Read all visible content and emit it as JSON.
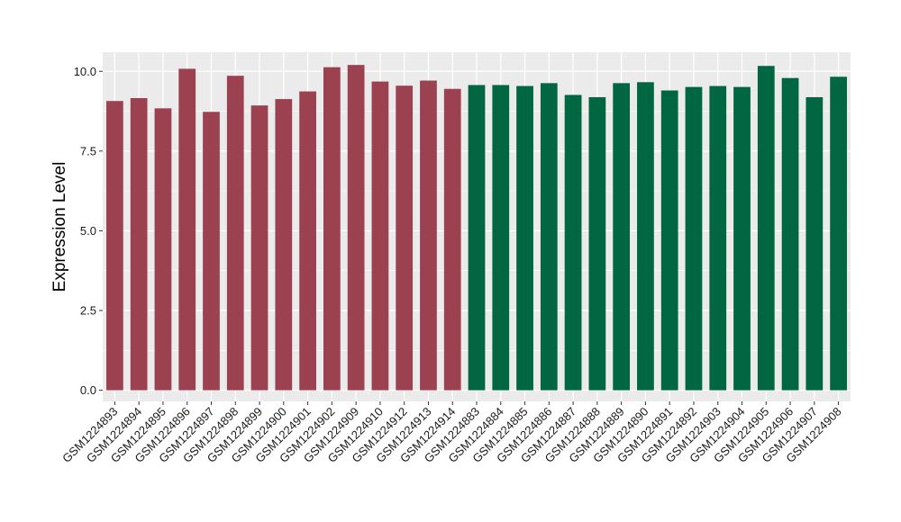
{
  "chart_data": {
    "type": "bar",
    "title": "",
    "xlabel": "",
    "ylabel": "Expression Level",
    "ylim": [
      -0.35,
      10.6
    ],
    "yticks": [
      0.0,
      2.5,
      5.0,
      7.5,
      10.0
    ],
    "ytick_labels": [
      "0.0",
      "2.5",
      "5.0",
      "7.5",
      "10.0"
    ],
    "grid": true,
    "panel_background": "#EBEBEB",
    "grid_color": "#FFFFFF",
    "categories": [
      "GSM1224893",
      "GSM1224894",
      "GSM1224895",
      "GSM1224896",
      "GSM1224897",
      "GSM1224898",
      "GSM1224899",
      "GSM1224900",
      "GSM1224901",
      "GSM1224902",
      "GSM1224909",
      "GSM1224910",
      "GSM1224912",
      "GSM1224913",
      "GSM1224914",
      "GSM1224883",
      "GSM1224884",
      "GSM1224885",
      "GSM1224886",
      "GSM1224887",
      "GSM1224888",
      "GSM1224889",
      "GSM1224890",
      "GSM1224891",
      "GSM1224892",
      "GSM1224903",
      "GSM1224904",
      "GSM1224905",
      "GSM1224906",
      "GSM1224907",
      "GSM1224908"
    ],
    "values": [
      9.07,
      9.16,
      8.84,
      10.08,
      8.73,
      9.86,
      8.93,
      9.13,
      9.37,
      10.13,
      10.2,
      9.68,
      9.55,
      9.71,
      9.45,
      9.57,
      9.57,
      9.54,
      9.63,
      9.26,
      9.19,
      9.63,
      9.66,
      9.4,
      9.51,
      9.54,
      9.51,
      10.17,
      9.79,
      9.19,
      9.83
    ],
    "groups": [
      "g1",
      "g1",
      "g1",
      "g1",
      "g1",
      "g1",
      "g1",
      "g1",
      "g1",
      "g1",
      "g1",
      "g1",
      "g1",
      "g1",
      "g1",
      "g2",
      "g2",
      "g2",
      "g2",
      "g2",
      "g2",
      "g2",
      "g2",
      "g2",
      "g2",
      "g2",
      "g2",
      "g2",
      "g2",
      "g2",
      "g2"
    ],
    "group_colors": {
      "g1": "#9B4150",
      "g2": "#006742"
    }
  }
}
